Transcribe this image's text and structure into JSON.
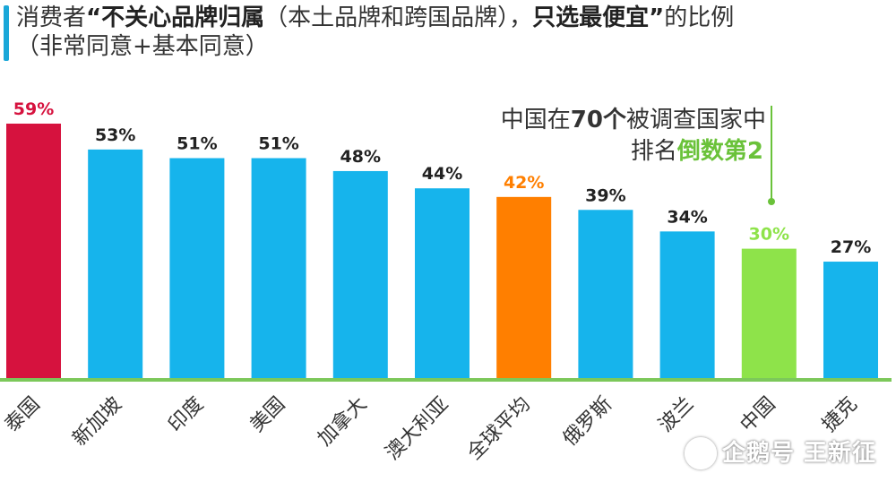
{
  "title": {
    "prefix": "消费者",
    "open_quote": "“",
    "bold1": "不关心品牌归属",
    "middle": "（本土品牌和跨国品牌），",
    "bold2": "只选最便宜",
    "close_quote": "”",
    "suffix": "的比例",
    "line2": "（非常同意+基本同意）"
  },
  "annotation": {
    "line1_a": "中国在",
    "line1_b": "70个",
    "line1_c": "被调查国家中",
    "line2_a": "排名",
    "line2_b": "倒数第2"
  },
  "watermark": "企鹅号 王新征",
  "colors": {
    "default_bar": "#16b4ec",
    "highlight_red": "#d6123e",
    "highlight_orange": "#ff7f00",
    "highlight_green": "#8ee34a",
    "baseline": "#7cc85a",
    "annotation_green": "#6ac23a"
  },
  "chart_data": {
    "type": "bar",
    "title": "消费者“不关心品牌归属（本土品牌和跨国品牌），只选最便宜”的比例（非常同意+基本同意）",
    "categories": [
      "泰国",
      "新加坡",
      "印度",
      "美国",
      "加拿大",
      "澳大利亚",
      "全球平均",
      "俄罗斯",
      "波兰",
      "中国",
      "捷克"
    ],
    "values": [
      59,
      53,
      51,
      51,
      48,
      44,
      42,
      39,
      34,
      30,
      27
    ],
    "labels": [
      "59%",
      "53%",
      "51%",
      "51%",
      "48%",
      "44%",
      "42%",
      "39%",
      "34%",
      "30%",
      "27%"
    ],
    "bar_colors": [
      "highlight_red",
      "default_bar",
      "default_bar",
      "default_bar",
      "default_bar",
      "default_bar",
      "highlight_orange",
      "default_bar",
      "default_bar",
      "highlight_green",
      "default_bar"
    ],
    "label_colors": [
      "highlight_red",
      "",
      "",
      "",
      "",
      "",
      "highlight_orange",
      "",
      "",
      "highlight_green",
      ""
    ],
    "unit": "%",
    "ylim": [
      0,
      65
    ],
    "grid": false,
    "xlabel": "",
    "ylabel": ""
  }
}
